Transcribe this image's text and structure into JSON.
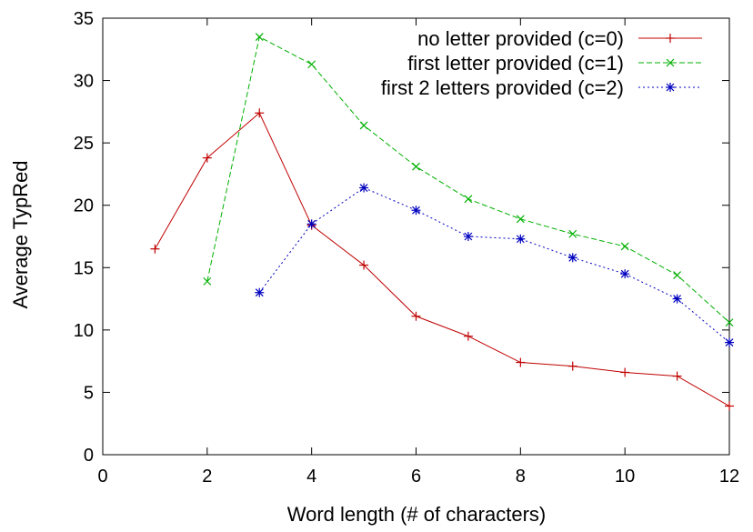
{
  "chart_data": {
    "type": "line",
    "title": "",
    "xlabel": "Word length (# of characters)",
    "ylabel": "Average TypRed",
    "xlim": [
      0,
      12
    ],
    "ylim": [
      0,
      35
    ],
    "xticks": [
      "0",
      "2",
      "4",
      "6",
      "8",
      "10",
      "12"
    ],
    "yticks": [
      "0",
      "5",
      "10",
      "15",
      "20",
      "25",
      "30",
      "35"
    ],
    "grid": false,
    "legend_position": "top-right",
    "series": [
      {
        "name": "no letter provided (c=0)",
        "color": "#c00000",
        "marker": "plus",
        "dash": "solid",
        "x": [
          1,
          2,
          3,
          4,
          5,
          6,
          7,
          8,
          9,
          10,
          11,
          12
        ],
        "y": [
          16.5,
          23.8,
          27.4,
          18.4,
          15.2,
          11.1,
          9.5,
          7.4,
          7.1,
          6.6,
          6.3,
          3.9
        ]
      },
      {
        "name": "first letter provided (c=1)",
        "color": "#00b000",
        "marker": "cross",
        "dash": "dashed",
        "x": [
          2,
          3,
          4,
          5,
          6,
          7,
          8,
          9,
          10,
          11,
          12
        ],
        "y": [
          13.9,
          33.5,
          31.3,
          26.4,
          23.1,
          20.5,
          18.9,
          17.7,
          16.7,
          14.4,
          10.6
        ]
      },
      {
        "name": "first 2 letters provided (c=2)",
        "color": "#0000c0",
        "marker": "star",
        "dash": "dotted",
        "x": [
          3,
          4,
          5,
          6,
          7,
          8,
          9,
          10,
          11,
          12
        ],
        "y": [
          13.0,
          18.5,
          21.4,
          19.6,
          17.5,
          17.3,
          15.8,
          14.5,
          12.5,
          9.0
        ]
      }
    ]
  }
}
